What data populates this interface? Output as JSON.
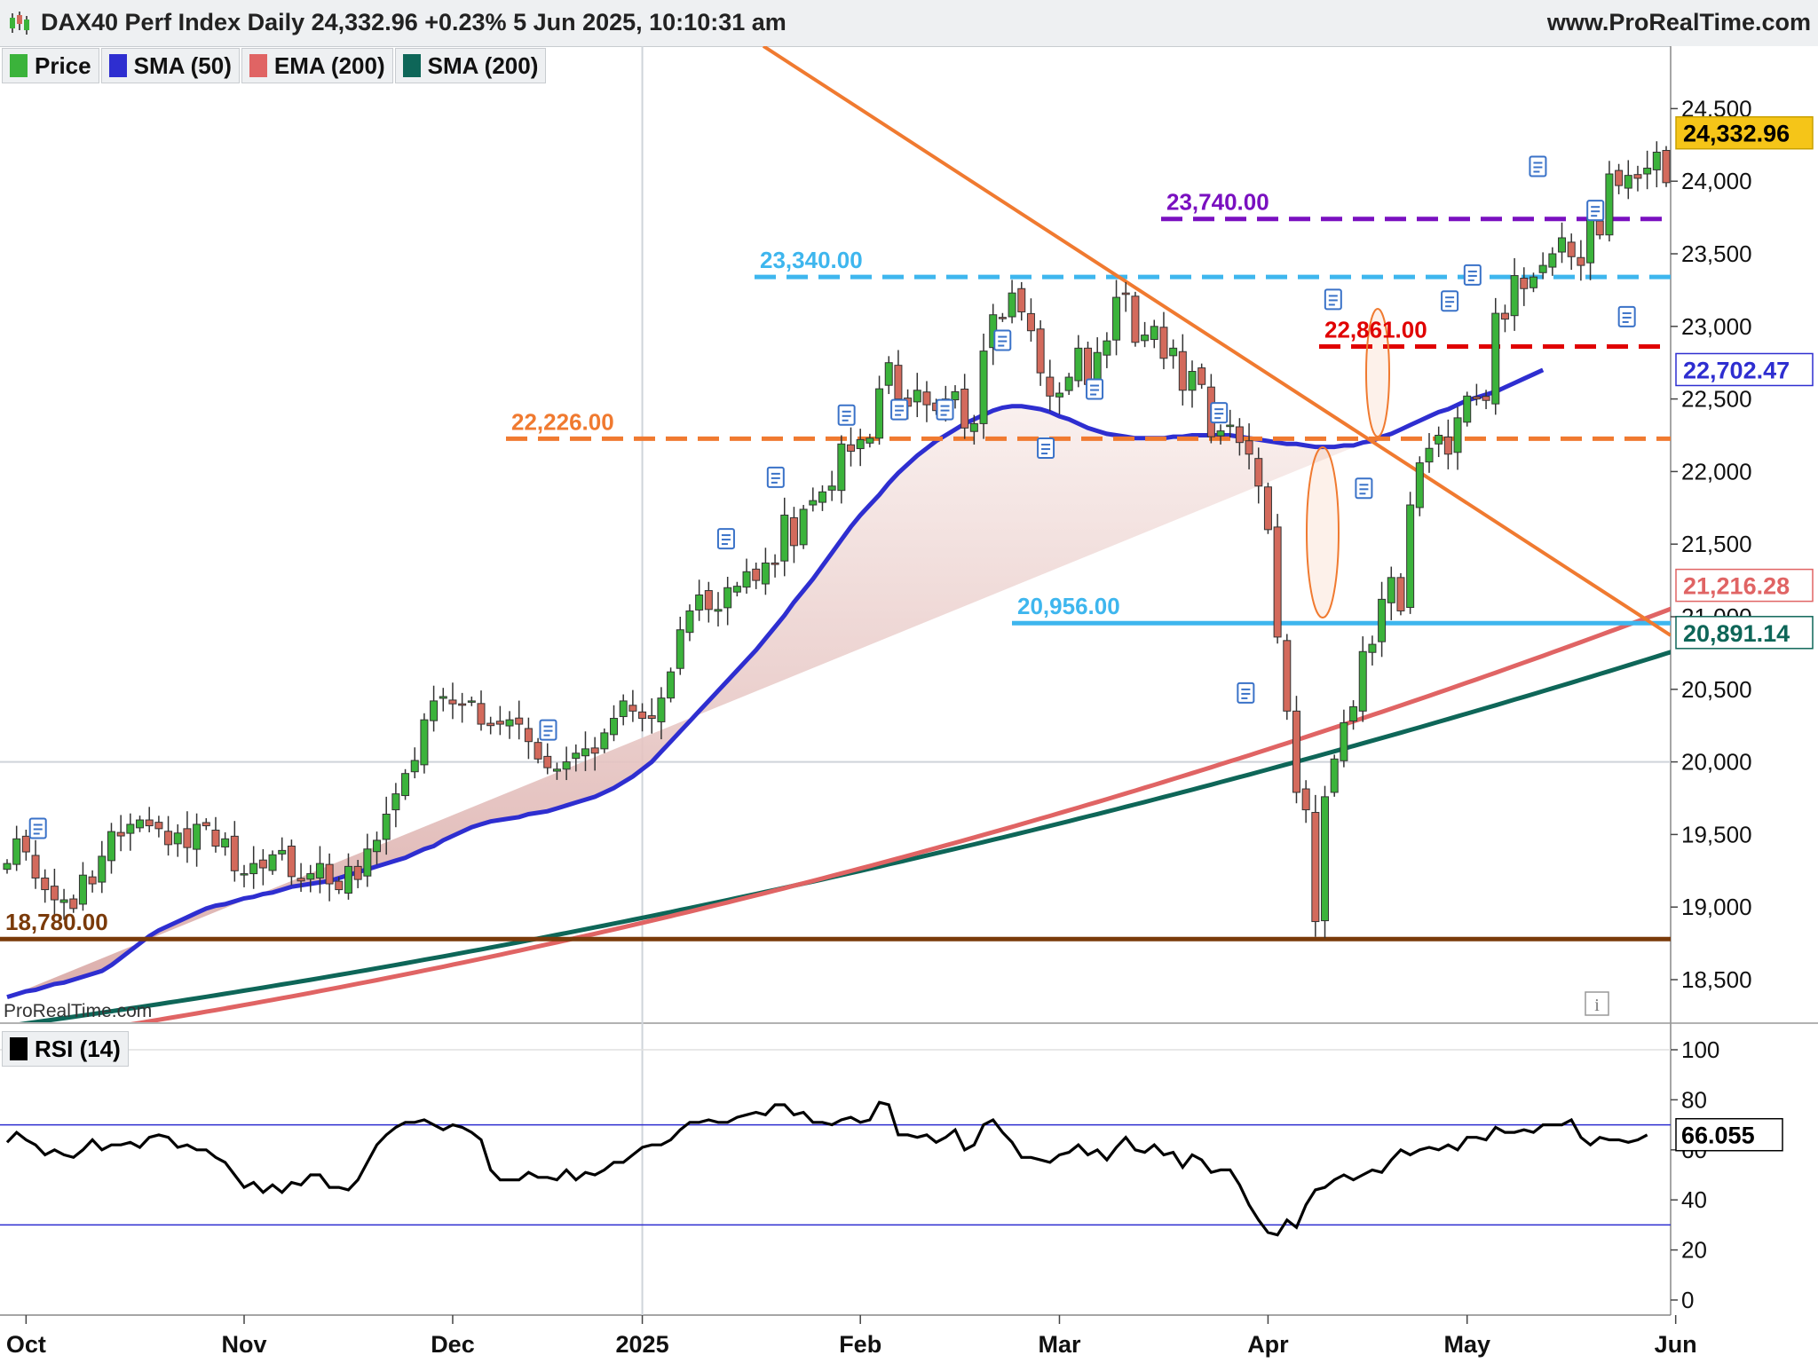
{
  "header": {
    "title": "DAX40 Perf Index Daily 24,332.96 +0.23% 5 Jun 2025, 10:10:31 am",
    "source": "www.ProRealTime.com"
  },
  "watermark": "ProRealTime.com",
  "legend": [
    {
      "label": "Price",
      "color": "#3bb33b"
    },
    {
      "label": "SMA (50)",
      "color": "#2e2ed0"
    },
    {
      "label": "EMA (200)",
      "color": "#e06464"
    },
    {
      "label": "SMA (200)",
      "color": "#0e6658"
    }
  ],
  "chart_data": [
    {
      "type": "candlestick",
      "title": "DAX40 Perf Index Daily",
      "ylim": [
        18200,
        24900
      ],
      "y_ticks": [
        "18,500",
        "19,000",
        "19,500",
        "20,000",
        "20,500",
        "21,000",
        "21,500",
        "22,000",
        "22,500",
        "23,000",
        "23,500",
        "24,000",
        "24,500"
      ],
      "y_tick_values": [
        18500,
        19000,
        19500,
        20000,
        20500,
        21000,
        21500,
        22000,
        22500,
        23000,
        23500,
        24000,
        24500
      ],
      "x_ticks": [
        "Oct",
        "Nov",
        "Dec",
        "2025",
        "Feb",
        "Mar",
        "Apr",
        "May",
        "Jun"
      ],
      "x_tick_index": [
        2,
        25,
        47,
        67,
        90,
        111,
        133,
        154,
        176
      ],
      "last_price": "24,332.96",
      "closes": [
        19300,
        19470,
        19380,
        19200,
        19120,
        19050,
        19050,
        18990,
        19220,
        19160,
        19350,
        19520,
        19490,
        19570,
        19600,
        19560,
        19540,
        19430,
        19510,
        19410,
        19570,
        19560,
        19420,
        19470,
        19250,
        19230,
        19300,
        19270,
        19360,
        19390,
        19210,
        19180,
        19230,
        19300,
        19160,
        19120,
        19280,
        19190,
        19400,
        19460,
        19640,
        19780,
        19920,
        20010,
        20290,
        20420,
        20450,
        20400,
        20390,
        20420,
        20260,
        20250,
        20260,
        20290,
        20260,
        20140,
        20020,
        19960,
        19950,
        20000,
        20060,
        20090,
        20060,
        20200,
        20300,
        20420,
        20350,
        20300,
        20300,
        20440,
        20620,
        20910,
        21040,
        21150,
        21050,
        21050,
        21200,
        21210,
        21310,
        21250,
        21370,
        21360,
        21700,
        21490,
        21740,
        21800,
        21860,
        21900,
        22190,
        22140,
        22220,
        22230,
        22570,
        22750,
        22500,
        22450,
        22560,
        22460,
        22420,
        22500,
        22550,
        22300,
        22330,
        22830,
        23080,
        23060,
        23230,
        23100,
        22970,
        22680,
        22520,
        22540,
        22650,
        22850,
        22600,
        22820,
        22900,
        23200,
        23220,
        22890,
        22940,
        23000,
        22780,
        22850,
        22560,
        22690,
        22600,
        22240,
        22280,
        22320,
        22200,
        22120,
        21900,
        21600,
        20860,
        20350,
        19790,
        19670,
        18900,
        19760,
        20020,
        20270,
        20380,
        20760,
        20810,
        21120,
        21270,
        21040,
        21770,
        22060,
        22160,
        22250,
        22120,
        22370,
        22520,
        22500,
        22490,
        23090,
        23050,
        23350,
        23260,
        23340,
        23420,
        23500,
        23610,
        23480,
        23420,
        23750,
        23630,
        24050,
        23970,
        24040,
        24020,
        24090,
        24200,
        23990,
        23600,
        24100,
        24030,
        23980,
        24120,
        24300,
        24330
      ],
      "sma50": [
        18380,
        18400,
        18420,
        18430,
        18450,
        18470,
        18480,
        18500,
        18520,
        18540,
        18560,
        18600,
        18650,
        18700,
        18750,
        18800,
        18840,
        18870,
        18900,
        18930,
        18960,
        18990,
        19010,
        19020,
        19040,
        19060,
        19070,
        19090,
        19100,
        19120,
        19140,
        19150,
        19160,
        19170,
        19180,
        19200,
        19220,
        19240,
        19260,
        19280,
        19300,
        19320,
        19340,
        19370,
        19400,
        19420,
        19460,
        19490,
        19520,
        19550,
        19570,
        19590,
        19600,
        19610,
        19620,
        19640,
        19650,
        19660,
        19680,
        19700,
        19720,
        19740,
        19760,
        19790,
        19820,
        19860,
        19900,
        19950,
        20000,
        20070,
        20140,
        20210,
        20280,
        20350,
        20420,
        20490,
        20560,
        20630,
        20700,
        20770,
        20850,
        20930,
        21010,
        21100,
        21180,
        21260,
        21350,
        21440,
        21530,
        21620,
        21700,
        21770,
        21840,
        21920,
        21990,
        22050,
        22110,
        22160,
        22210,
        22250,
        22290,
        22330,
        22360,
        22390,
        22420,
        22440,
        22450,
        22450,
        22440,
        22430,
        22410,
        22380,
        22360,
        22330,
        22300,
        22280,
        22260,
        22250,
        22240,
        22230,
        22230,
        22230,
        22230,
        22240,
        22240,
        22250,
        22250,
        22250,
        22250,
        22250,
        22240,
        22230,
        22220,
        22210,
        22200,
        22190,
        22190,
        22180,
        22170,
        22170,
        22170,
        22180,
        22180,
        22200,
        22210,
        22240,
        22260,
        22290,
        22320,
        22350,
        22380,
        22410,
        22430,
        22460,
        22490,
        22510,
        22530,
        22550,
        22580,
        22610,
        22640,
        22670,
        22700
      ]
    },
    {
      "type": "line",
      "title": "RSI (14)",
      "ylim": [
        0,
        100
      ],
      "y_ticks": [
        "0",
        "20",
        "40",
        "60",
        "80",
        "100"
      ],
      "y_tick_values": [
        0,
        20,
        40,
        60,
        80,
        100
      ],
      "bands": [
        30,
        70
      ],
      "last_value": "66.055",
      "values": [
        63,
        67,
        64,
        62,
        58,
        60,
        58,
        57,
        60,
        64,
        60,
        62,
        62,
        63,
        61,
        65,
        66,
        65,
        61,
        62,
        60,
        60,
        57,
        55,
        50,
        45,
        47,
        43,
        46,
        43,
        47,
        46,
        50,
        50,
        45,
        45,
        44,
        48,
        55,
        62,
        66,
        69,
        71,
        71,
        72,
        70,
        68,
        70,
        69,
        67,
        64,
        52,
        48,
        48,
        48,
        51,
        49,
        49,
        48,
        52,
        48,
        51,
        50,
        52,
        55,
        55,
        58,
        61,
        62,
        62,
        64,
        68,
        71,
        71,
        72,
        71,
        71,
        73,
        74,
        75,
        74,
        78,
        78,
        74,
        75,
        71,
        71,
        70,
        72,
        73,
        71,
        72,
        79,
        78,
        66,
        66,
        65,
        66,
        63,
        65,
        68,
        60,
        62,
        70,
        72,
        67,
        63,
        57,
        57,
        56,
        55,
        58,
        59,
        62,
        58,
        60,
        56,
        61,
        65,
        60,
        59,
        62,
        58,
        59,
        53,
        58,
        56,
        51,
        52,
        52,
        46,
        38,
        32,
        27,
        26,
        32,
        29,
        38,
        44,
        45,
        48,
        50,
        48,
        50,
        52,
        51,
        56,
        60,
        58,
        60,
        61,
        60,
        62,
        60,
        65,
        65,
        64,
        69,
        67,
        67,
        68,
        67,
        70,
        70,
        70,
        72,
        65,
        62,
        65,
        64,
        64,
        63,
        64,
        66
      ]
    }
  ],
  "levels": [
    {
      "label": "23,740.00",
      "value": 23740,
      "color": "#7a10c0",
      "dashed": true
    },
    {
      "label": "23,340.00",
      "value": 23340,
      "color": "#3eb6ee",
      "dashed": true
    },
    {
      "label": "22,861.00",
      "value": 22861,
      "color": "#e00000",
      "dashed": true
    },
    {
      "label": "22,226.00",
      "value": 22226,
      "color": "#f07a30",
      "dashed": true
    },
    {
      "label": "20,956.00",
      "value": 20956,
      "color": "#3eb6ee",
      "dashed": false
    },
    {
      "label": "18,780.00",
      "value": 18780,
      "color": "#7a3a0a",
      "dashed": false
    }
  ],
  "right_labels": [
    {
      "label": "24,332.96",
      "value": 24332.96,
      "bg": "#f5c518",
      "fg": "#000000"
    },
    {
      "label": "22,702.47",
      "value": 22702.47,
      "bg": "#ffffff",
      "fg": "#2e2ed0"
    },
    {
      "label": "21,216.28",
      "value": 21216.28,
      "bg": "#ffffff",
      "fg": "#e06464"
    },
    {
      "label": "20,891.14",
      "value": 20891.14,
      "bg": "#ffffff",
      "fg": "#0e6658"
    }
  ],
  "colors": {
    "up": "#3bb33b",
    "down": "#d36a5c",
    "sma50": "#2e2ed0",
    "ema200": "#e06464",
    "sma200": "#0e6658",
    "trendline": "#f07a30"
  }
}
